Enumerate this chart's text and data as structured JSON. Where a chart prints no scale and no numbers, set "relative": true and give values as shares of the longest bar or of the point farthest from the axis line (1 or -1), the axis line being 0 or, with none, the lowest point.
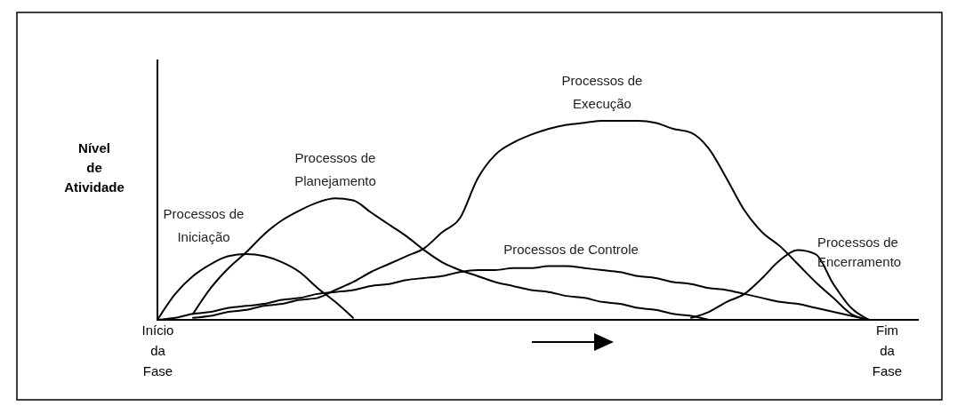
{
  "chart_data": {
    "type": "line",
    "relative": true,
    "ylabel": "Nível de Atividade",
    "marker": "none",
    "line_style": "solid",
    "categories": [
      "Início da Fase",
      null,
      null,
      null,
      null,
      null,
      null,
      null,
      null,
      null,
      null,
      null,
      null,
      null,
      null,
      null,
      null,
      null,
      null,
      null,
      null,
      null,
      null,
      null,
      null,
      null,
      null,
      null,
      null,
      null,
      null,
      null,
      null,
      null,
      null,
      null,
      null,
      null,
      null,
      null,
      null,
      "Fim da Fase"
    ],
    "series": [
      {
        "name": "Processos de Iniciação",
        "color": "#000000",
        "values": [
          0,
          0.13,
          0.22,
          0.28,
          0.32,
          0.33,
          0.32,
          0.29,
          0.24,
          0.16,
          0.09,
          0.01,
          null,
          null,
          null,
          null,
          null,
          null,
          null,
          null,
          null,
          null,
          null,
          null,
          null,
          null,
          null,
          null,
          null,
          null,
          null,
          null,
          null,
          null,
          null,
          null,
          null,
          null,
          null,
          null,
          null,
          null
        ]
      },
      {
        "name": "Processos de Planejamento",
        "color": "#000000",
        "values": [
          null,
          null,
          0.03,
          0.16,
          0.26,
          0.34,
          0.43,
          0.5,
          0.55,
          0.59,
          0.61,
          0.6,
          0.54,
          0.48,
          0.42,
          0.35,
          0.29,
          0.25,
          0.22,
          0.19,
          0.17,
          0.15,
          0.14,
          0.12,
          0.11,
          0.09,
          0.08,
          0.06,
          0.05,
          0.03,
          0.02,
          0,
          null,
          null,
          null,
          null,
          null,
          null,
          null,
          null,
          null,
          null
        ]
      },
      {
        "name": "Processos de Execução",
        "color": "#000000",
        "values": [
          null,
          null,
          0.01,
          0.02,
          0.04,
          0.05,
          0.07,
          0.08,
          0.1,
          0.11,
          0.15,
          0.19,
          0.24,
          0.28,
          0.32,
          0.36,
          0.44,
          0.51,
          0.71,
          0.83,
          0.89,
          0.93,
          0.96,
          0.98,
          0.99,
          1,
          1,
          1,
          0.99,
          0.96,
          0.94,
          0.86,
          0.71,
          0.55,
          0.44,
          0.37,
          0.28,
          0.19,
          0.11,
          0.03,
          0,
          null
        ]
      },
      {
        "name": "Processos de Controle",
        "color": "#000000",
        "values": [
          0,
          0.01,
          0.03,
          0.04,
          0.06,
          0.07,
          0.08,
          0.1,
          0.11,
          0.13,
          0.14,
          0.15,
          0.17,
          0.18,
          0.2,
          0.21,
          0.22,
          0.24,
          0.25,
          0.25,
          0.26,
          0.26,
          0.27,
          0.27,
          0.26,
          0.25,
          0.24,
          0.22,
          0.21,
          0.19,
          0.18,
          0.16,
          0.15,
          0.13,
          0.11,
          0.09,
          0.08,
          0.06,
          0.04,
          0.02,
          0,
          null
        ]
      },
      {
        "name": "Processos de Encerramento",
        "color": "#000000",
        "values": [
          null,
          null,
          null,
          null,
          null,
          null,
          null,
          null,
          null,
          null,
          null,
          null,
          null,
          null,
          null,
          null,
          null,
          null,
          null,
          null,
          null,
          null,
          null,
          null,
          null,
          null,
          null,
          null,
          null,
          null,
          0.01,
          0.04,
          0.09,
          0.13,
          0.21,
          0.3,
          0.35,
          0.33,
          0.18,
          0.06,
          0,
          null
        ]
      }
    ]
  }
}
